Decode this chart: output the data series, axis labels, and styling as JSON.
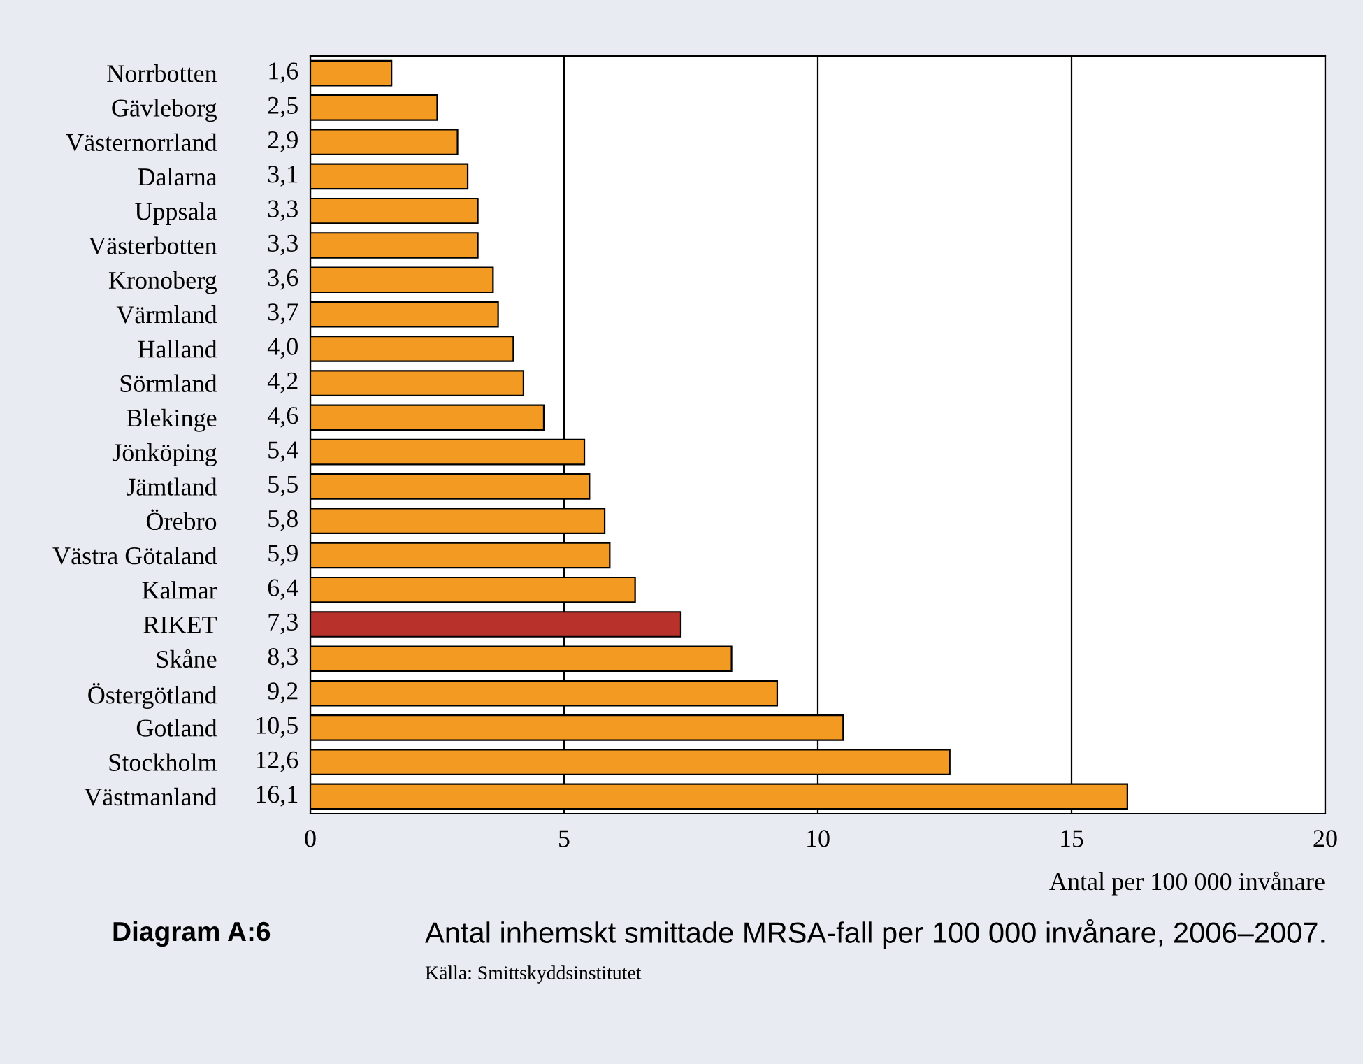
{
  "chart_data": {
    "type": "bar",
    "orientation": "horizontal",
    "categories": [
      "Norrbotten",
      "Gävleborg",
      "Västernorrland",
      "Dalarna",
      "Uppsala",
      "Västerbotten",
      "Kronoberg",
      "Värmland",
      "Halland",
      "Sörmland",
      "Blekinge",
      "Jönköping",
      "Jämtland",
      "Örebro",
      "Västra Götaland",
      "Kalmar",
      "RIKET",
      "Skåne",
      "Östergötland",
      "Gotland",
      "Stockholm",
      "Västmanland"
    ],
    "values": [
      1.6,
      2.5,
      2.9,
      3.1,
      3.3,
      3.3,
      3.6,
      3.7,
      4.0,
      4.2,
      4.6,
      5.4,
      5.5,
      5.8,
      5.9,
      6.4,
      7.3,
      8.3,
      9.2,
      10.5,
      12.6,
      16.1
    ],
    "value_labels": [
      "1,6",
      "2,5",
      "2,9",
      "3,1",
      "3,3",
      "3,3",
      "3,6",
      "3,7",
      "4,0",
      "4,2",
      "4,6",
      "5,4",
      "5,5",
      "5,8",
      "5,9",
      "6,4",
      "7,3",
      "8,3",
      "9,2",
      "10,5",
      "12,6",
      "16,1"
    ],
    "colors": [
      "#f39a22",
      "#f39a22",
      "#f39a22",
      "#f39a22",
      "#f39a22",
      "#f39a22",
      "#f39a22",
      "#f39a22",
      "#f39a22",
      "#f39a22",
      "#f39a22",
      "#f39a22",
      "#f39a22",
      "#f39a22",
      "#f39a22",
      "#f39a22",
      "#b8322b",
      "#f39a22",
      "#f39a22",
      "#f39a22",
      "#f39a22",
      "#f39a22"
    ],
    "xlim": [
      0,
      20
    ],
    "xticks": [
      0,
      5,
      10,
      15,
      20
    ],
    "grid": "x",
    "legend": false,
    "xlabel": "Antal per 100 000 invånare",
    "annotations": [
      "Diagram A:6",
      "Antal inhemskt smittade MRSA-fall per 100 000 invånare, 2006–2007.",
      "Källa: Smittskyddsinstitutet"
    ]
  }
}
